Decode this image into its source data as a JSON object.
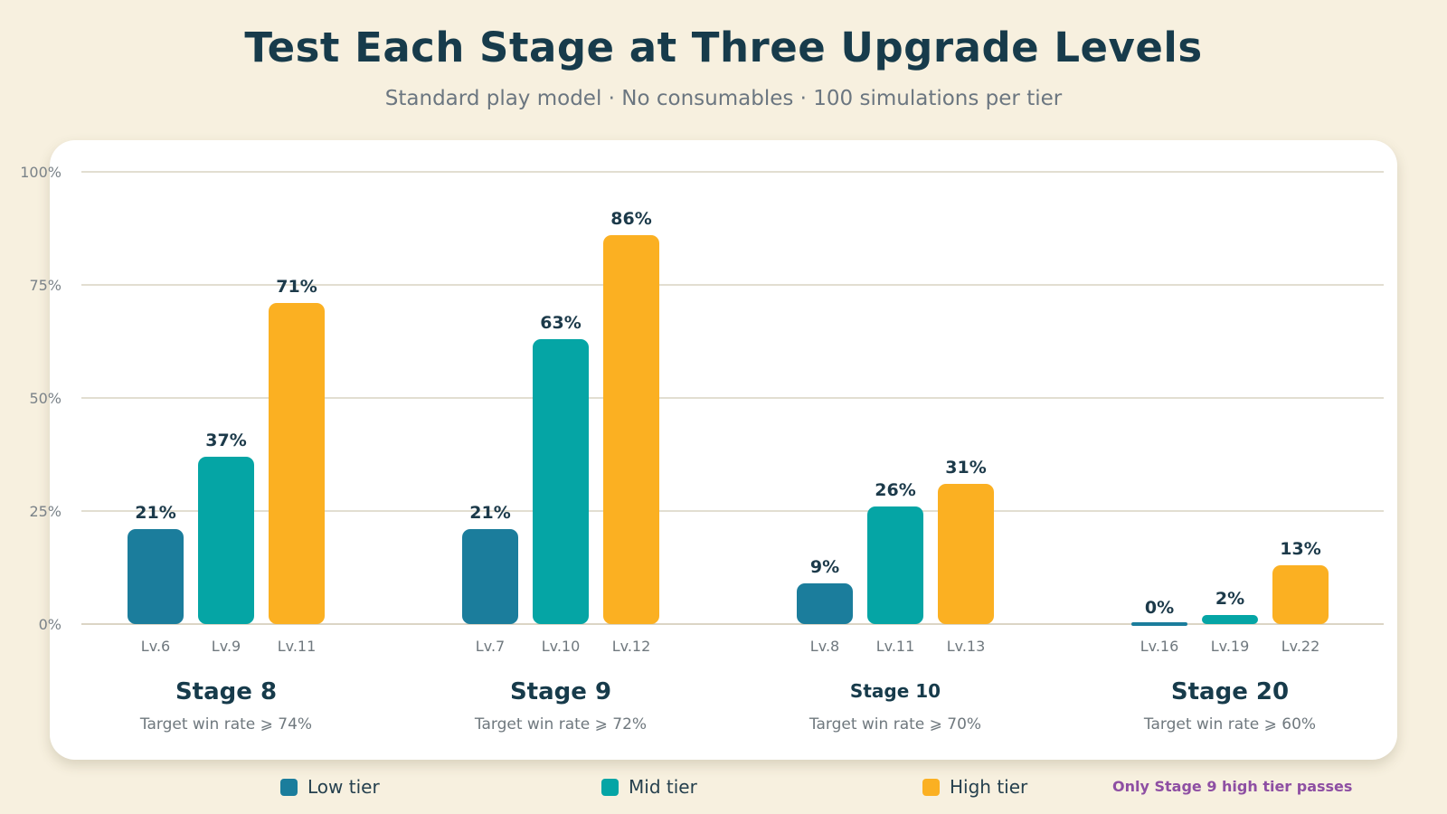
{
  "title": "Test Each Stage at Three Upgrade Levels",
  "subtitle": "Standard play model · No consumables · 100 simulations per tier",
  "colors": {
    "low": "#1b7d9c",
    "mid": "#05a5a5",
    "high": "#fbb022",
    "grid": "#d9d3c2",
    "note": "#8e4fa3"
  },
  "legend": [
    {
      "label": "Low tier",
      "color": "#1b7d9c"
    },
    {
      "label": "Mid tier",
      "color": "#05a5a5"
    },
    {
      "label": "High tier",
      "color": "#fbb022"
    }
  ],
  "note": "Only Stage 9 high tier passes",
  "chart_data": {
    "type": "bar",
    "ylim": [
      0,
      100
    ],
    "yticks": [
      "0%",
      "25%",
      "50%",
      "75%",
      "100%"
    ],
    "grid": true,
    "legend_position": "bottom",
    "groups": [
      {
        "name": "Stage 8",
        "target": "Target win rate ⩾ 74%",
        "bars": [
          {
            "tier": "low",
            "level": "Lv.6",
            "value": 21,
            "label": "21%"
          },
          {
            "tier": "mid",
            "level": "Lv.9",
            "value": 37,
            "label": "37%"
          },
          {
            "tier": "high",
            "level": "Lv.11",
            "value": 71,
            "label": "71%"
          }
        ]
      },
      {
        "name": "Stage 9",
        "target": "Target win rate ⩾ 72%",
        "bars": [
          {
            "tier": "low",
            "level": "Lv.7",
            "value": 21,
            "label": "21%"
          },
          {
            "tier": "mid",
            "level": "Lv.10",
            "value": 63,
            "label": "63%"
          },
          {
            "tier": "high",
            "level": "Lv.12",
            "value": 86,
            "label": "86%"
          }
        ]
      },
      {
        "name": "Stage 10",
        "target": "Target win rate ⩾ 70%",
        "bars": [
          {
            "tier": "low",
            "level": "Lv.8",
            "value": 9,
            "label": "9%"
          },
          {
            "tier": "mid",
            "level": "Lv.11",
            "value": 26,
            "label": "26%"
          },
          {
            "tier": "high",
            "level": "Lv.13",
            "value": 31,
            "label": "31%"
          }
        ]
      },
      {
        "name": "Stage 20",
        "target": "Target win rate ⩾ 60%",
        "bars": [
          {
            "tier": "low",
            "level": "Lv.16",
            "value": 0,
            "label": "0%"
          },
          {
            "tier": "mid",
            "level": "Lv.19",
            "value": 2,
            "label": "2%"
          },
          {
            "tier": "high",
            "level": "Lv.22",
            "value": 13,
            "label": "13%"
          }
        ]
      }
    ]
  }
}
